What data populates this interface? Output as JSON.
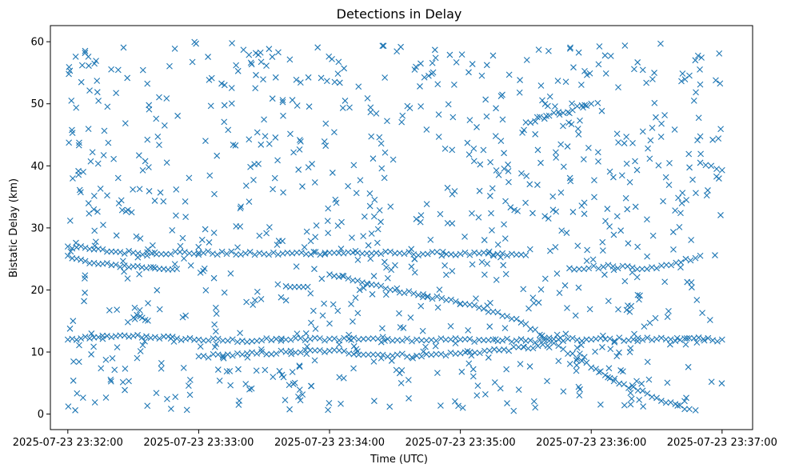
{
  "chart_data": {
    "type": "scatter",
    "title": "Detections in Delay",
    "xlabel": "Time (UTC)",
    "ylabel": "Bistatic Delay (km)",
    "marker": "x",
    "color": "#1f77b4",
    "xlim": [
      "2025-07-23 23:31:52",
      "2025-07-23 23:37:14"
    ],
    "ylim": [
      -2.5,
      62.6
    ],
    "x_ticks": [
      "2025-07-23 23:32:00",
      "2025-07-23 23:33:00",
      "2025-07-23 23:34:00",
      "2025-07-23 23:35:00",
      "2025-07-23 23:36:00",
      "2025-07-23 23:37:00"
    ],
    "y_ticks": [
      0,
      10,
      20,
      30,
      40,
      50,
      60
    ],
    "grid": false,
    "legend": "none",
    "track_points": [
      {
        "x": "2025-07-23 23:32:00",
        "y": 12.0
      },
      {
        "x": "2025-07-23 23:32:10",
        "y": 12.2
      },
      {
        "x": "2025-07-23 23:32:20",
        "y": 12.4
      },
      {
        "x": "2025-07-23 23:32:30",
        "y": 12.6
      },
      {
        "x": "2025-07-23 23:32:40",
        "y": 12.4
      },
      {
        "x": "2025-07-23 23:32:50",
        "y": 12.2
      },
      {
        "x": "2025-07-23 23:33:00",
        "y": 12.0
      },
      {
        "x": "2025-07-23 23:33:20",
        "y": 11.8
      },
      {
        "x": "2025-07-23 23:33:40",
        "y": 12.0
      },
      {
        "x": "2025-07-23 23:34:00",
        "y": 12.1
      },
      {
        "x": "2025-07-23 23:34:20",
        "y": 12.2
      },
      {
        "x": "2025-07-23 23:34:40",
        "y": 12.0
      },
      {
        "x": "2025-07-23 23:35:00",
        "y": 12.0
      },
      {
        "x": "2025-07-23 23:35:30",
        "y": 11.8
      },
      {
        "x": "2025-07-23 23:36:00",
        "y": 12.0
      },
      {
        "x": "2025-07-23 23:36:30",
        "y": 12.1
      },
      {
        "x": "2025-07-23 23:37:00",
        "y": 12.0
      },
      {
        "x": "2025-07-23 23:32:00",
        "y": 25.5
      },
      {
        "x": "2025-07-23 23:32:10",
        "y": 24.3
      },
      {
        "x": "2025-07-23 23:32:20",
        "y": 24.0
      },
      {
        "x": "2025-07-23 23:32:30",
        "y": 23.8
      },
      {
        "x": "2025-07-23 23:32:40",
        "y": 23.5
      },
      {
        "x": "2025-07-23 23:32:50",
        "y": 23.4
      },
      {
        "x": "2025-07-23 23:32:00",
        "y": 27.0
      },
      {
        "x": "2025-07-23 23:32:10",
        "y": 26.6
      },
      {
        "x": "2025-07-23 23:32:20",
        "y": 26.2
      },
      {
        "x": "2025-07-23 23:32:30",
        "y": 26.0
      },
      {
        "x": "2025-07-23 23:33:00",
        "y": 26.0
      },
      {
        "x": "2025-07-23 23:33:30",
        "y": 25.8
      },
      {
        "x": "2025-07-23 23:34:00",
        "y": 26.0
      },
      {
        "x": "2025-07-23 23:34:30",
        "y": 25.9
      },
      {
        "x": "2025-07-23 23:35:00",
        "y": 25.8
      },
      {
        "x": "2025-07-23 23:35:30",
        "y": 25.6
      },
      {
        "x": "2025-07-23 23:33:00",
        "y": 9.3
      },
      {
        "x": "2025-07-23 23:33:20",
        "y": 9.6
      },
      {
        "x": "2025-07-23 23:33:40",
        "y": 10.0
      },
      {
        "x": "2025-07-23 23:34:00",
        "y": 10.2
      },
      {
        "x": "2025-07-23 23:34:20",
        "y": 9.6
      },
      {
        "x": "2025-07-23 23:34:40",
        "y": 9.4
      },
      {
        "x": "2025-07-23 23:35:00",
        "y": 9.8
      },
      {
        "x": "2025-07-23 23:35:20",
        "y": 10.4
      },
      {
        "x": "2025-07-23 23:35:40",
        "y": 11.0
      },
      {
        "x": "2025-07-23 23:34:00",
        "y": 22.5
      },
      {
        "x": "2025-07-23 23:34:15",
        "y": 21.2
      },
      {
        "x": "2025-07-23 23:34:30",
        "y": 20.0
      },
      {
        "x": "2025-07-23 23:34:45",
        "y": 19.0
      },
      {
        "x": "2025-07-23 23:35:00",
        "y": 17.8
      },
      {
        "x": "2025-07-23 23:35:15",
        "y": 16.5
      },
      {
        "x": "2025-07-23 23:35:30",
        "y": 14.5
      },
      {
        "x": "2025-07-23 23:35:45",
        "y": 11.0
      },
      {
        "x": "2025-07-23 23:36:00",
        "y": 7.5
      },
      {
        "x": "2025-07-23 23:36:15",
        "y": 4.8
      },
      {
        "x": "2025-07-23 23:36:30",
        "y": 2.6
      },
      {
        "x": "2025-07-23 23:36:45",
        "y": 0.8
      },
      {
        "x": "2025-07-23 23:36:50",
        "y": 40.5
      },
      {
        "x": "2025-07-23 23:36:55",
        "y": 40.0
      },
      {
        "x": "2025-07-23 23:37:00",
        "y": 39.3
      },
      {
        "x": "2025-07-23 23:35:50",
        "y": 23.5
      },
      {
        "x": "2025-07-23 23:36:10",
        "y": 23.8
      },
      {
        "x": "2025-07-23 23:36:30",
        "y": 23.5
      },
      {
        "x": "2025-07-23 23:36:50",
        "y": 25.5
      },
      {
        "x": "2025-07-23 23:33:40",
        "y": 20.6
      },
      {
        "x": "2025-07-23 23:33:50",
        "y": 20.5
      },
      {
        "x": "2025-07-23 23:34:00",
        "y": 14.6
      },
      {
        "x": "2025-07-23 23:35:50",
        "y": 48.5
      },
      {
        "x": "2025-07-23 23:35:30",
        "y": 47.0
      },
      {
        "x": "2025-07-23 23:36:00",
        "y": 50.0
      }
    ],
    "clutter_count": 900
  }
}
